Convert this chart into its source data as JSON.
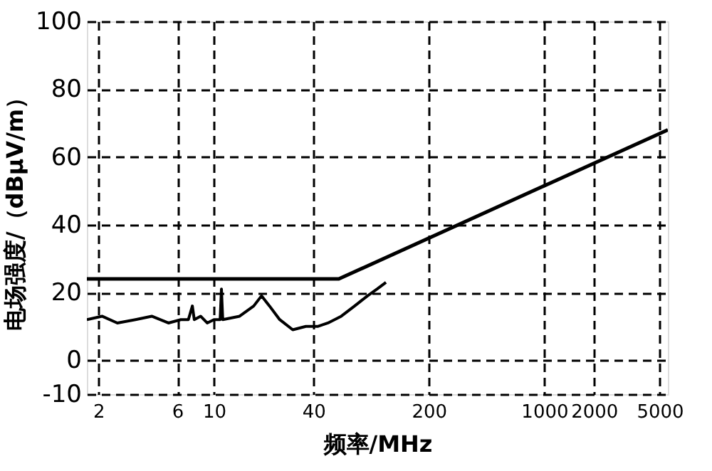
{
  "chart_data": {
    "type": "line",
    "xlabel": "频率/MHz",
    "ylabel": "电场强度/（dBμV/m）",
    "log": "x",
    "xlim": [
      1.7,
      5600
    ],
    "ylim": [
      -10,
      100
    ],
    "xticks": [
      2,
      6,
      10,
      40,
      200,
      1000,
      2000,
      5000
    ],
    "yticks": [
      -10,
      0,
      20,
      40,
      60,
      80,
      100
    ],
    "grid": true,
    "line_style": "solid",
    "marker": "none",
    "series": [
      {
        "color": "#000000",
        "x": [
          1.7,
          57,
          5600
        ],
        "values": [
          24,
          24,
          68
        ]
      },
      {
        "color": "#000000",
        "x": [
          1.7,
          2.1,
          2.6,
          3.35,
          4.2,
          5.3,
          6.3,
          7.0,
          7.4,
          7.6,
          8.3,
          9.1,
          10,
          10.9,
          11.1,
          11.3,
          14.3,
          17.4,
          19.4,
          21.7,
          25,
          30,
          36,
          42.7,
          49,
          59,
          71,
          85,
          97,
          110
        ],
        "values": [
          12,
          13,
          11,
          12,
          13,
          11,
          12,
          12,
          16,
          12,
          13,
          11,
          12,
          12,
          21,
          12,
          13,
          16,
          19,
          16,
          12,
          9,
          10,
          10,
          11,
          13,
          16,
          19,
          21,
          23
        ]
      }
    ]
  }
}
